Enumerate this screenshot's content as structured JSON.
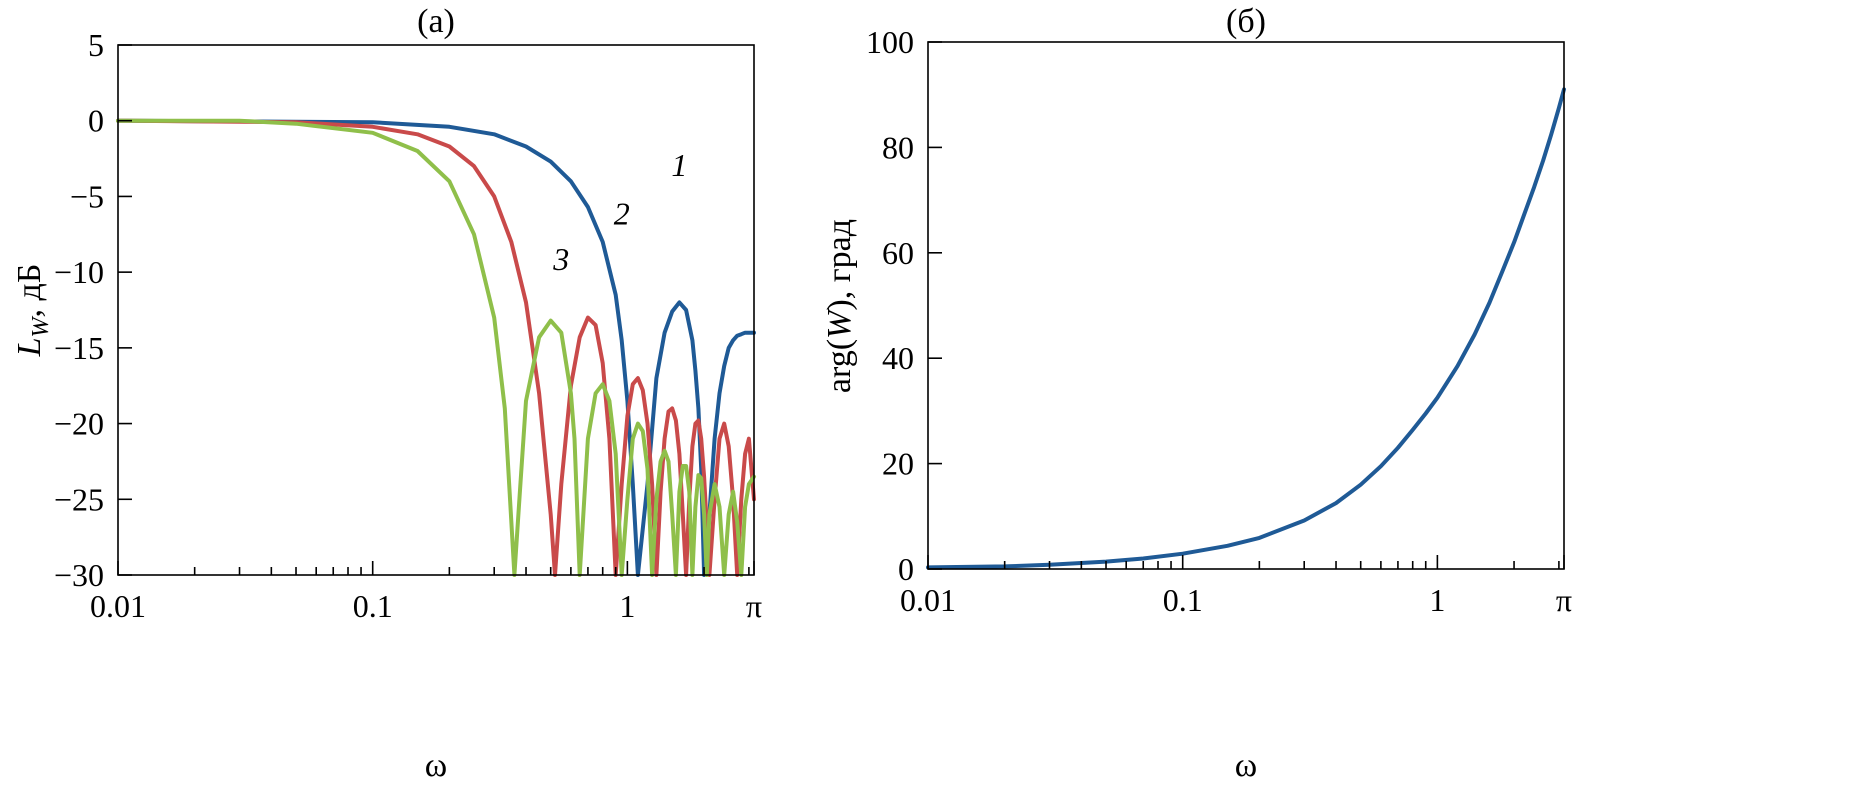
{
  "chart_data": [
    {
      "type": "line",
      "title": "(а)",
      "xlabel": "ω",
      "ylabel": "L_W, дБ",
      "ylabel_main": "L",
      "ylabel_sub": "W",
      "ylabel_rest": ", дБ",
      "xscale": "log",
      "xlim": [
        0.01,
        3.14159
      ],
      "ylim": [
        -30,
        5
      ],
      "xticks": [
        0.01,
        0.1,
        1,
        3.14159
      ],
      "xtick_labels": [
        "0.01",
        "0.1",
        "1",
        "π"
      ],
      "yticks": [
        5,
        0,
        -5,
        -10,
        -15,
        -20,
        -25,
        -30
      ],
      "ytick_labels": [
        "5",
        "0",
        "−5",
        "−10",
        "−15",
        "−20",
        "−25",
        "−30"
      ],
      "grid": false,
      "series": [
        {
          "name": "1",
          "color": "#1f5a96",
          "x": [
            0.01,
            0.1,
            0.2,
            0.3,
            0.4,
            0.5,
            0.6,
            0.7,
            0.8,
            0.9,
            0.95,
            1.0,
            1.05,
            1.1,
            1.2,
            1.3,
            1.4,
            1.5,
            1.6,
            1.7,
            1.8,
            1.85,
            1.9,
            1.95,
            2.0,
            2.1,
            2.2,
            2.3,
            2.4,
            2.5,
            2.6,
            2.7,
            2.8,
            2.9,
            3.0,
            3.14159
          ],
          "y": [
            0,
            -0.1,
            -0.4,
            -0.9,
            -1.7,
            -2.7,
            -4.0,
            -5.7,
            -8.0,
            -11.5,
            -14.5,
            -18.5,
            -24.0,
            -30.0,
            -24.0,
            -17.0,
            -14.0,
            -12.6,
            -12.0,
            -12.5,
            -14.5,
            -16.5,
            -19.0,
            -23.0,
            -30.0,
            -26.0,
            -21.0,
            -18.0,
            -16.2,
            -15.0,
            -14.5,
            -14.2,
            -14.1,
            -14.0,
            -14.0,
            -14.0
          ]
        },
        {
          "name": "2",
          "color": "#c94a4a",
          "x": [
            0.01,
            0.05,
            0.1,
            0.15,
            0.2,
            0.25,
            0.3,
            0.35,
            0.4,
            0.45,
            0.5,
            0.52,
            0.55,
            0.6,
            0.65,
            0.7,
            0.75,
            0.8,
            0.85,
            0.9,
            0.95,
            1.0,
            1.05,
            1.1,
            1.15,
            1.2,
            1.25,
            1.3,
            1.35,
            1.4,
            1.45,
            1.5,
            1.55,
            1.6,
            1.65,
            1.7,
            1.75,
            1.8,
            1.85,
            1.9,
            1.95,
            2.0,
            2.1,
            2.2,
            2.3,
            2.4,
            2.5,
            2.6,
            2.7,
            2.8,
            2.9,
            3.0,
            3.14159
          ],
          "y": [
            0,
            -0.1,
            -0.4,
            -0.9,
            -1.7,
            -3.0,
            -5.0,
            -8.0,
            -12.0,
            -18.0,
            -26.0,
            -30.0,
            -24.0,
            -17.5,
            -14.3,
            -13.0,
            -13.5,
            -16.0,
            -21.0,
            -30.0,
            -24.0,
            -19.5,
            -17.4,
            -17.0,
            -17.8,
            -20.0,
            -24.0,
            -30.0,
            -24.5,
            -21.0,
            -19.2,
            -19.0,
            -19.8,
            -22.0,
            -26.0,
            -30.0,
            -25.0,
            -21.5,
            -20.0,
            -19.8,
            -21.0,
            -23.5,
            -30.0,
            -25.0,
            -21.0,
            -20.0,
            -21.5,
            -25.0,
            -30.0,
            -25.0,
            -22.0,
            -21.0,
            -25.0
          ]
        },
        {
          "name": "3",
          "color": "#8fbf4a",
          "x": [
            0.01,
            0.03,
            0.05,
            0.1,
            0.15,
            0.2,
            0.25,
            0.3,
            0.33,
            0.36,
            0.38,
            0.4,
            0.45,
            0.5,
            0.55,
            0.6,
            0.62,
            0.65,
            0.7,
            0.75,
            0.8,
            0.85,
            0.9,
            0.95,
            1.0,
            1.05,
            1.1,
            1.15,
            1.2,
            1.25,
            1.3,
            1.35,
            1.4,
            1.45,
            1.5,
            1.55,
            1.6,
            1.65,
            1.7,
            1.75,
            1.8,
            1.85,
            1.9,
            1.95,
            2.0,
            2.05,
            2.1,
            2.2,
            2.3,
            2.4,
            2.5,
            2.6,
            2.7,
            2.8,
            2.9,
            3.0,
            3.14159
          ],
          "y": [
            0,
            0,
            -0.2,
            -0.8,
            -2.0,
            -4.0,
            -7.5,
            -13.0,
            -19.0,
            -30.0,
            -24.0,
            -18.5,
            -14.3,
            -13.2,
            -14.0,
            -18.0,
            -21.0,
            -30.0,
            -21.0,
            -18.0,
            -17.4,
            -18.5,
            -22.0,
            -30.0,
            -25.0,
            -21.0,
            -20.0,
            -20.5,
            -23.0,
            -30.0,
            -25.0,
            -22.5,
            -21.8,
            -22.5,
            -26.0,
            -30.0,
            -24.5,
            -22.8,
            -22.8,
            -24.5,
            -30.0,
            -25.5,
            -23.4,
            -23.6,
            -26.0,
            -30.0,
            -26.0,
            -24.0,
            -25.5,
            -30.0,
            -26.0,
            -24.5,
            -26.5,
            -30.0,
            -25.5,
            -24.0,
            -23.5
          ]
        }
      ],
      "annotations": [
        {
          "text": "1",
          "x": 1.6,
          "y": -3.0
        },
        {
          "text": "2",
          "x": 0.95,
          "y": -6.2
        },
        {
          "text": "3",
          "x": 0.55,
          "y": -9.2
        }
      ]
    },
    {
      "type": "line",
      "title": "(б)",
      "xlabel": "ω",
      "ylabel": "arg(W), град",
      "ylabel_main": "arg(",
      "ylabel_it": "W",
      "ylabel_rest": "), град",
      "xscale": "log",
      "xlim": [
        0.01,
        3.14159
      ],
      "ylim": [
        0,
        100
      ],
      "xticks": [
        0.01,
        0.1,
        1,
        3.14159
      ],
      "xtick_labels": [
        "0.01",
        "0.1",
        "1",
        "π"
      ],
      "yticks": [
        0,
        20,
        40,
        60,
        80,
        100
      ],
      "ytick_labels": [
        "0",
        "20",
        "40",
        "60",
        "80",
        "100"
      ],
      "grid": false,
      "series": [
        {
          "name": "",
          "color": "#1f5a96",
          "x": [
            0.01,
            0.02,
            0.03,
            0.05,
            0.07,
            0.1,
            0.15,
            0.2,
            0.3,
            0.4,
            0.5,
            0.6,
            0.7,
            0.8,
            0.9,
            1.0,
            1.2,
            1.4,
            1.6,
            1.8,
            2.0,
            2.2,
            2.4,
            2.6,
            2.8,
            3.0,
            3.14159
          ],
          "y": [
            0.3,
            0.5,
            0.8,
            1.4,
            2.0,
            2.9,
            4.4,
            5.9,
            9.2,
            12.5,
            16.0,
            19.5,
            23.0,
            26.4,
            29.5,
            32.5,
            38.5,
            44.5,
            50.5,
            56.5,
            62.0,
            67.5,
            72.5,
            77.5,
            82.5,
            87.5,
            91.0
          ]
        }
      ]
    }
  ]
}
